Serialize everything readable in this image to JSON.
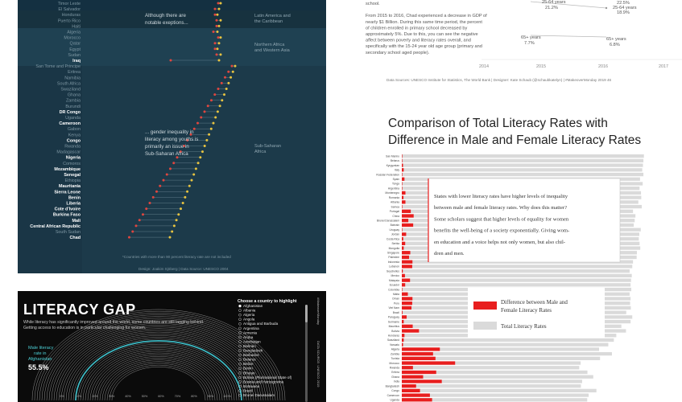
{
  "panel_a": {
    "countries_top": [
      "Timor Leste",
      "El Salvador",
      "Honduras",
      "Puerto Rico",
      "Haiti",
      "Algeria",
      "Morocco",
      "Qatar",
      "Egypt",
      "Sudan",
      "Iraq"
    ],
    "countries_main": [
      "San Tome and Principe",
      "Eritrea",
      "Namibia",
      "South Africa",
      "Swaziland",
      "Ghana",
      "Zambia",
      "Burundi",
      "DR Congo",
      "Uganda",
      "Cameroon",
      "Gabon",
      "Kenya",
      "Congo",
      "Rwanda",
      "Madagascar",
      "Nigeria",
      "Comoros",
      "Mozambique",
      "Senegal",
      "Ethiopia",
      "Mauritania",
      "Sierra Leone",
      "Benin",
      "Liberia",
      "Cote d'Ivoire",
      "Burkina Faso",
      "Mali",
      "Central African Republic",
      "South Sudan",
      "Chad"
    ],
    "bold_countries": [
      "Iraq",
      "DR Congo",
      "Cameroon",
      "Congo",
      "Nigeria",
      "Mozambique",
      "Senegal",
      "Mauritania",
      "Sierra Leone",
      "Benin",
      "Liberia",
      "Cote d'Ivoire",
      "Burkina Faso",
      "Mali",
      "Central African Republic",
      "Chad"
    ],
    "note_top": [
      "Although there are",
      "notable exeptions..."
    ],
    "note_mid": [
      "... gender inequality in",
      "literacy among youths is",
      "primarily an issue in",
      "Sub-Saharan Africa"
    ],
    "region_latam": [
      "Latin America and",
      "the Caribbean"
    ],
    "region_mena": [
      "Northern Africa",
      "and Western Asia"
    ],
    "region_ssa": [
      "Sub-Saharan",
      "Africa"
    ],
    "footnote": "*Countries with more than 90 percent literacy rate are not included",
    "credit": "Design: Joakim Sjöberg | Data Source: UNESCO 2004",
    "colors": {
      "female": "#e0463f",
      "male": "#e8c440",
      "text_bold": "#ffffff",
      "text_dim": "#7e97a3"
    }
  },
  "panel_b": {
    "body_lines": [
      "school.",
      "",
      "From 2015 to 2016, Chad experienced a decrease in GDP of",
      "nearly $1 Billion. During this same time period, the percent",
      "of children enrolled in primary school decreased by",
      "approximately 5%. Due to this, you can see the negative",
      "affect between poverty and literacy rates overall, and",
      "specifically with the 15-24 year old age group (primary and",
      "secondary school aged people)."
    ],
    "labels": {
      "top_left_group": "25-64 years",
      "top_left_val": "21.2%",
      "top_right_a": "22.5%",
      "top_right_group": "25-64 years",
      "top_right_val": "18.9%",
      "bottom_left_group": "65+ years",
      "bottom_left_val": "7.7%",
      "bottom_right_group": "65+ years",
      "bottom_right_val": "6.8%"
    },
    "x_ticks": [
      "2014",
      "2015",
      "2016",
      "2017"
    ],
    "source": "Data Sources: UNESCO Institute for Statistics, The World Bank | Designer: Kate Schaub (@schaubkatelyn) | #MakeoverMonday 2019 46"
  },
  "panel_c": {
    "title_line1": "Comparison of Total Literacy Rates with",
    "title_line2": "Difference in Male and Female Literacy Rates",
    "annotation": [
      "States with lower literacy rates have higher levels of inequality",
      "between male and female literacy rates. Why does this matter?",
      "Some scholars suggest that higher levels of equality for women",
      "benefits the well-being of a society exponentially. Giving wom-",
      "en education and a voice helps not only women, but also chil-",
      "dren and men."
    ],
    "legend": {
      "red_line1": "Difference between Male and",
      "red_line2": "Female Literacy Rates",
      "grey": "Total Literacy Rates"
    },
    "colors": {
      "total": "#dadada",
      "gap": "#e81e1e"
    }
  },
  "chart_data": {
    "type": "bar",
    "categories": [
      "San Marino",
      "Belarus",
      "Kyrgyzstan",
      "Italy",
      "Russian Federation",
      "Spain",
      "Tonga",
      "Argentina",
      "Montenegro",
      "Romania",
      "Albania",
      "Samoa",
      "Portugal",
      "China",
      "Brunei Darussalam",
      "Bahrain",
      "Uruguay",
      "Jordan",
      "Costa Rica",
      "Serbia",
      "Mongolia",
      "Singapore",
      "Palestine",
      "Indonesia",
      "Lebanon",
      "Seychelles",
      "Mexico",
      "Malaysia",
      "Ecuador",
      "Colombia",
      "Malta",
      "Oman",
      "Peru",
      "Viet Nam",
      "Brazil",
      "Paraguay",
      "Suriname",
      "Mauritius",
      "Bolivia",
      "Honduras",
      "Swaziland",
      "Vanuatu",
      "Algeria",
      "Zambia",
      "Tunisia",
      "Morocco",
      "Rwanda",
      "Eritrea",
      "Ghana",
      "India",
      "Bangladesh",
      "Congo",
      "Cameroon",
      "Uganda"
    ],
    "series": [
      {
        "name": "Total Literacy Rates",
        "values": [
          99.9,
          99.7,
          99.5,
          99.2,
          99.7,
          98.3,
          99.4,
          98.1,
          98.7,
          98.8,
          97.6,
          99.0,
          95.4,
          96.4,
          96.1,
          95.7,
          98.6,
          98.0,
          97.8,
          98.1,
          98.4,
          97.0,
          96.9,
          95.4,
          95.1,
          94.0,
          94.9,
          94.6,
          94.4,
          94.7,
          94.0,
          94.4,
          94.2,
          94.5,
          92.6,
          95.1,
          94.4,
          90.6,
          92.5,
          88.5,
          87.5,
          85.2,
          81.4,
          86.7,
          81.8,
          73.8,
          73.2,
          76.6,
          79.0,
          74.4,
          73.9,
          80.3,
          77.1,
          76.5
        ]
      },
      {
        "name": "Difference between Male and Female Literacy Rates",
        "values": [
          0.2,
          0.1,
          0.5,
          0.8,
          0.0,
          1.1,
          0.1,
          0.1,
          1.5,
          0.7,
          1.5,
          0.1,
          3.7,
          4.9,
          2.7,
          4.7,
          0.1,
          1.8,
          0.6,
          1.4,
          0.8,
          3.5,
          3.0,
          4.4,
          4.3,
          0.4,
          1.3,
          3.4,
          1.4,
          0.2,
          2.5,
          4.4,
          4.3,
          4.0,
          0.3,
          2.0,
          0.8,
          4.5,
          7.1,
          1.1,
          0.8,
          0.5,
          15.7,
          12.9,
          13.9,
          22.0,
          4.6,
          14.2,
          8.8,
          16.5,
          5.9,
          7.5,
          11.6,
          12.5
        ]
      }
    ],
    "xlim": [
      0,
      100
    ]
  },
  "panel_d": {
    "title": "LITERACY GAP",
    "subtitle_line1": "While literacy has significantly improved around the world, some countries are still lagging behind.",
    "subtitle_line2": "Getting access to education is in particular challenging for women.",
    "caption_line1": "Male literacy",
    "caption_line2": "rate in",
    "caption_line3": "Afghanistan",
    "value": "55.5%",
    "list_header": "Choose a country to highlight",
    "list": [
      "Afghanistan",
      "Albania",
      "Algeria",
      "Angola",
      "Antigua and Barbuda",
      "Argentina",
      "Armenia",
      "Aruba",
      "Azerbaijan",
      "Bahrain",
      "Bangladesh",
      "Barbados",
      "Belarus",
      "Belize",
      "Benin",
      "Bhutan",
      "Bolivia (Plurinational State of)",
      "Bosnia and Herzegovina",
      "Botswana",
      "Brazil",
      "Brunei Darussalam"
    ],
    "axis_ticks": [
      "0%",
      "10%",
      "20%",
      "30%",
      "40%",
      "50%",
      "60%",
      "70%",
      "80%",
      "90%",
      "100%"
    ],
    "vertical_text": "DATA SOURCE: UNESCO 2019",
    "vertical_text_2": "#MakeoverMonday",
    "colors": {
      "arcs": "#cfcfcf",
      "highlight": "#3fb8c2"
    }
  }
}
